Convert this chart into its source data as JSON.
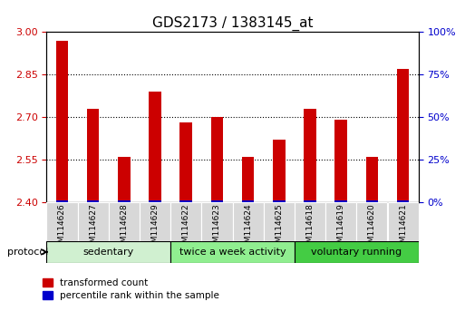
{
  "title": "GDS2173 / 1383145_at",
  "categories": [
    "GSM114626",
    "GSM114627",
    "GSM114628",
    "GSM114629",
    "GSM114622",
    "GSM114623",
    "GSM114624",
    "GSM114625",
    "GSM114618",
    "GSM114619",
    "GSM114620",
    "GSM114621"
  ],
  "red_values": [
    2.97,
    2.73,
    2.56,
    2.79,
    2.68,
    2.7,
    2.56,
    2.62,
    2.73,
    2.69,
    2.56,
    2.87
  ],
  "y_min": 2.4,
  "y_max": 3.0,
  "y_ticks": [
    2.4,
    2.55,
    2.7,
    2.85,
    3.0
  ],
  "right_y_ticks": [
    0,
    25,
    50,
    75,
    100
  ],
  "right_y_labels": [
    "0%",
    "25%",
    "50%",
    "75%",
    "100%"
  ],
  "groups": [
    {
      "label": "sedentary",
      "start": 0,
      "end": 4,
      "color": "#d0f0d0"
    },
    {
      "label": "twice a week activity",
      "start": 4,
      "end": 8,
      "color": "#90ee90"
    },
    {
      "label": "voluntary running",
      "start": 8,
      "end": 12,
      "color": "#44cc44"
    }
  ],
  "bar_width": 0.4,
  "red_color": "#cc0000",
  "blue_color": "#0000cc",
  "legend_red_label": "transformed count",
  "legend_blue_label": "percentile rank within the sample",
  "protocol_label": "protocol",
  "tick_label_color_left": "#cc0000",
  "tick_label_color_right": "#0000cc",
  "gray_cell_color": "#d8d8d8",
  "title_fontsize": 11,
  "axis_fontsize": 8,
  "label_fontsize": 6.5,
  "group_fontsize": 8,
  "legend_fontsize": 7.5
}
